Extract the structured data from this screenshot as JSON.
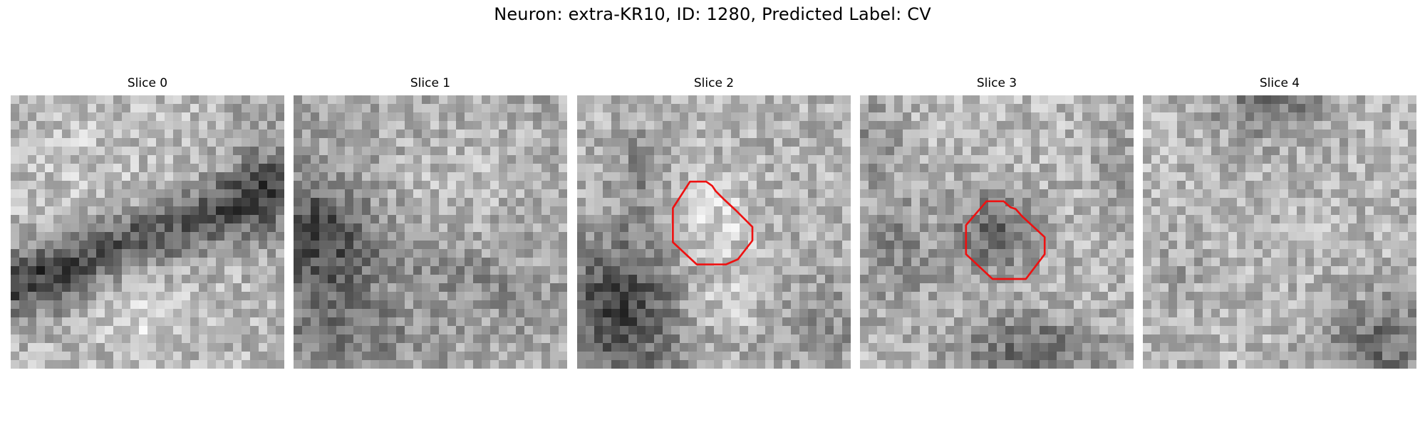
{
  "figure": {
    "title": "Neuron: extra-KR10, ID: 1280, Predicted Label: CV"
  },
  "panels": [
    {
      "title": "Slice 0",
      "has_contour": false
    },
    {
      "title": "Slice 1",
      "has_contour": false
    },
    {
      "title": "Slice 2",
      "has_contour": true
    },
    {
      "title": "Slice 3",
      "has_contour": true
    },
    {
      "title": "Slice 4",
      "has_contour": false
    }
  ],
  "colors": {
    "contour": "#ee1111",
    "colormap": "gray"
  }
}
